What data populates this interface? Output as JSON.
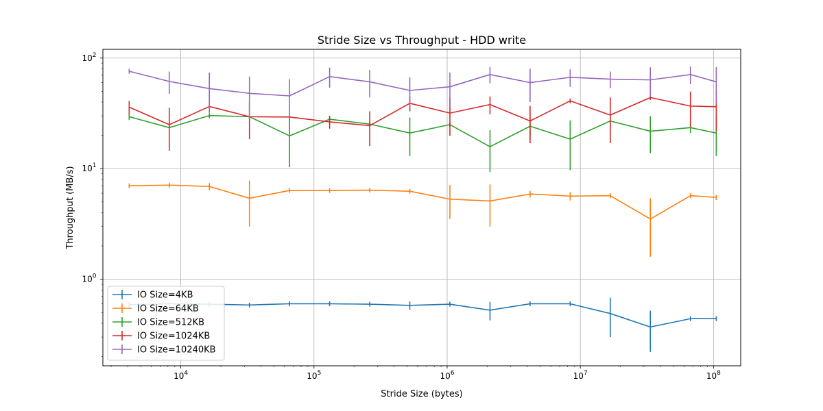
{
  "chart_data": {
    "type": "line",
    "title": "Stride Size vs Throughput - HDD write",
    "xlabel": "Stride Size (bytes)",
    "ylabel": "Throughput (MB/s)",
    "xscale": "log",
    "yscale": "log",
    "xlim": [
      2600,
      160000000
    ],
    "ylim": [
      0.165,
      120
    ],
    "grid": true,
    "legend_position": "lower-left",
    "x_ticks": [
      {
        "value": 10000,
        "base": "10",
        "exp": "4"
      },
      {
        "value": 100000,
        "base": "10",
        "exp": "5"
      },
      {
        "value": 1000000,
        "base": "10",
        "exp": "6"
      },
      {
        "value": 10000000,
        "base": "10",
        "exp": "7"
      },
      {
        "value": 100000000,
        "base": "10",
        "exp": "8"
      }
    ],
    "y_ticks": [
      {
        "value": 1,
        "base": "10",
        "exp": "0"
      },
      {
        "value": 10,
        "base": "10",
        "exp": "1"
      },
      {
        "value": 100,
        "base": "10",
        "exp": "2"
      }
    ],
    "x": [
      4096,
      8192,
      16384,
      32768,
      65536,
      131072,
      262144,
      524288,
      1048576,
      2097152,
      4194304,
      8388608,
      16777216,
      33554432,
      67108864,
      104857600
    ],
    "series": [
      {
        "name": "IO Size=4KB",
        "color": "#1f77b4",
        "values": [
          0.59,
          0.6,
          0.595,
          0.585,
          0.6,
          0.6,
          0.595,
          0.58,
          0.595,
          0.525,
          0.6,
          0.6,
          0.49,
          0.37,
          0.44,
          0.44
        ],
        "err": [
          0.0,
          0.0,
          0.0,
          0.03,
          0.0,
          0.0,
          0.0,
          0.05,
          0.0,
          0.1,
          0.0,
          0.0,
          0.19,
          0.15,
          0.0,
          0.0
        ]
      },
      {
        "name": "IO Size=64KB",
        "color": "#ff7f0e",
        "values": [
          7.0,
          7.1,
          6.9,
          5.4,
          6.35,
          6.35,
          6.4,
          6.25,
          5.3,
          5.1,
          5.9,
          5.65,
          5.7,
          3.5,
          5.7,
          5.5
        ],
        "err": [
          0.0,
          0.0,
          0.5,
          2.4,
          0.0,
          0.0,
          0.0,
          0.0,
          1.8,
          2.1,
          0.4,
          0.5,
          0.0,
          1.9,
          0.0,
          0.3
        ]
      },
      {
        "name": "IO Size=512KB",
        "color": "#2ca02c",
        "values": [
          29.5,
          23.5,
          30.2,
          29.5,
          19.8,
          28.0,
          25.3,
          21.0,
          25.0,
          15.8,
          24.2,
          18.5,
          27.0,
          21.8,
          23.5,
          21.0
        ],
        "err": [
          2.0,
          0.0,
          0.0,
          0.0,
          9.5,
          2.0,
          0.0,
          8.0,
          0.0,
          6.5,
          5.0,
          8.8,
          0.0,
          8.0,
          2.5,
          8.0
        ]
      },
      {
        "name": "IO Size=1024KB",
        "color": "#d62728",
        "values": [
          36.0,
          25.0,
          36.5,
          29.5,
          29.3,
          26.5,
          24.5,
          39.0,
          31.8,
          38.0,
          27.0,
          41.0,
          30.5,
          44.0,
          36.8,
          36.3
        ],
        "err": [
          5.0,
          10.5,
          0.0,
          11.0,
          0.0,
          3.5,
          8.5,
          6.0,
          12.0,
          7.0,
          10.0,
          0.0,
          13.5,
          0.0,
          13.0,
          14.5
        ]
      },
      {
        "name": "IO Size=10240KB",
        "color": "#9467bd",
        "values": [
          76.0,
          61.5,
          53.0,
          48.0,
          45.5,
          68.0,
          61.0,
          51.0,
          55.0,
          71.0,
          60.0,
          67.0,
          64.5,
          63.5,
          71.0,
          61.0
        ],
        "err": [
          0.0,
          14.0,
          21.0,
          20.0,
          19.0,
          14.0,
          17.0,
          16.0,
          19.0,
          12.0,
          20.0,
          12.0,
          11.0,
          19.0,
          13.0,
          22.0
        ]
      }
    ]
  }
}
